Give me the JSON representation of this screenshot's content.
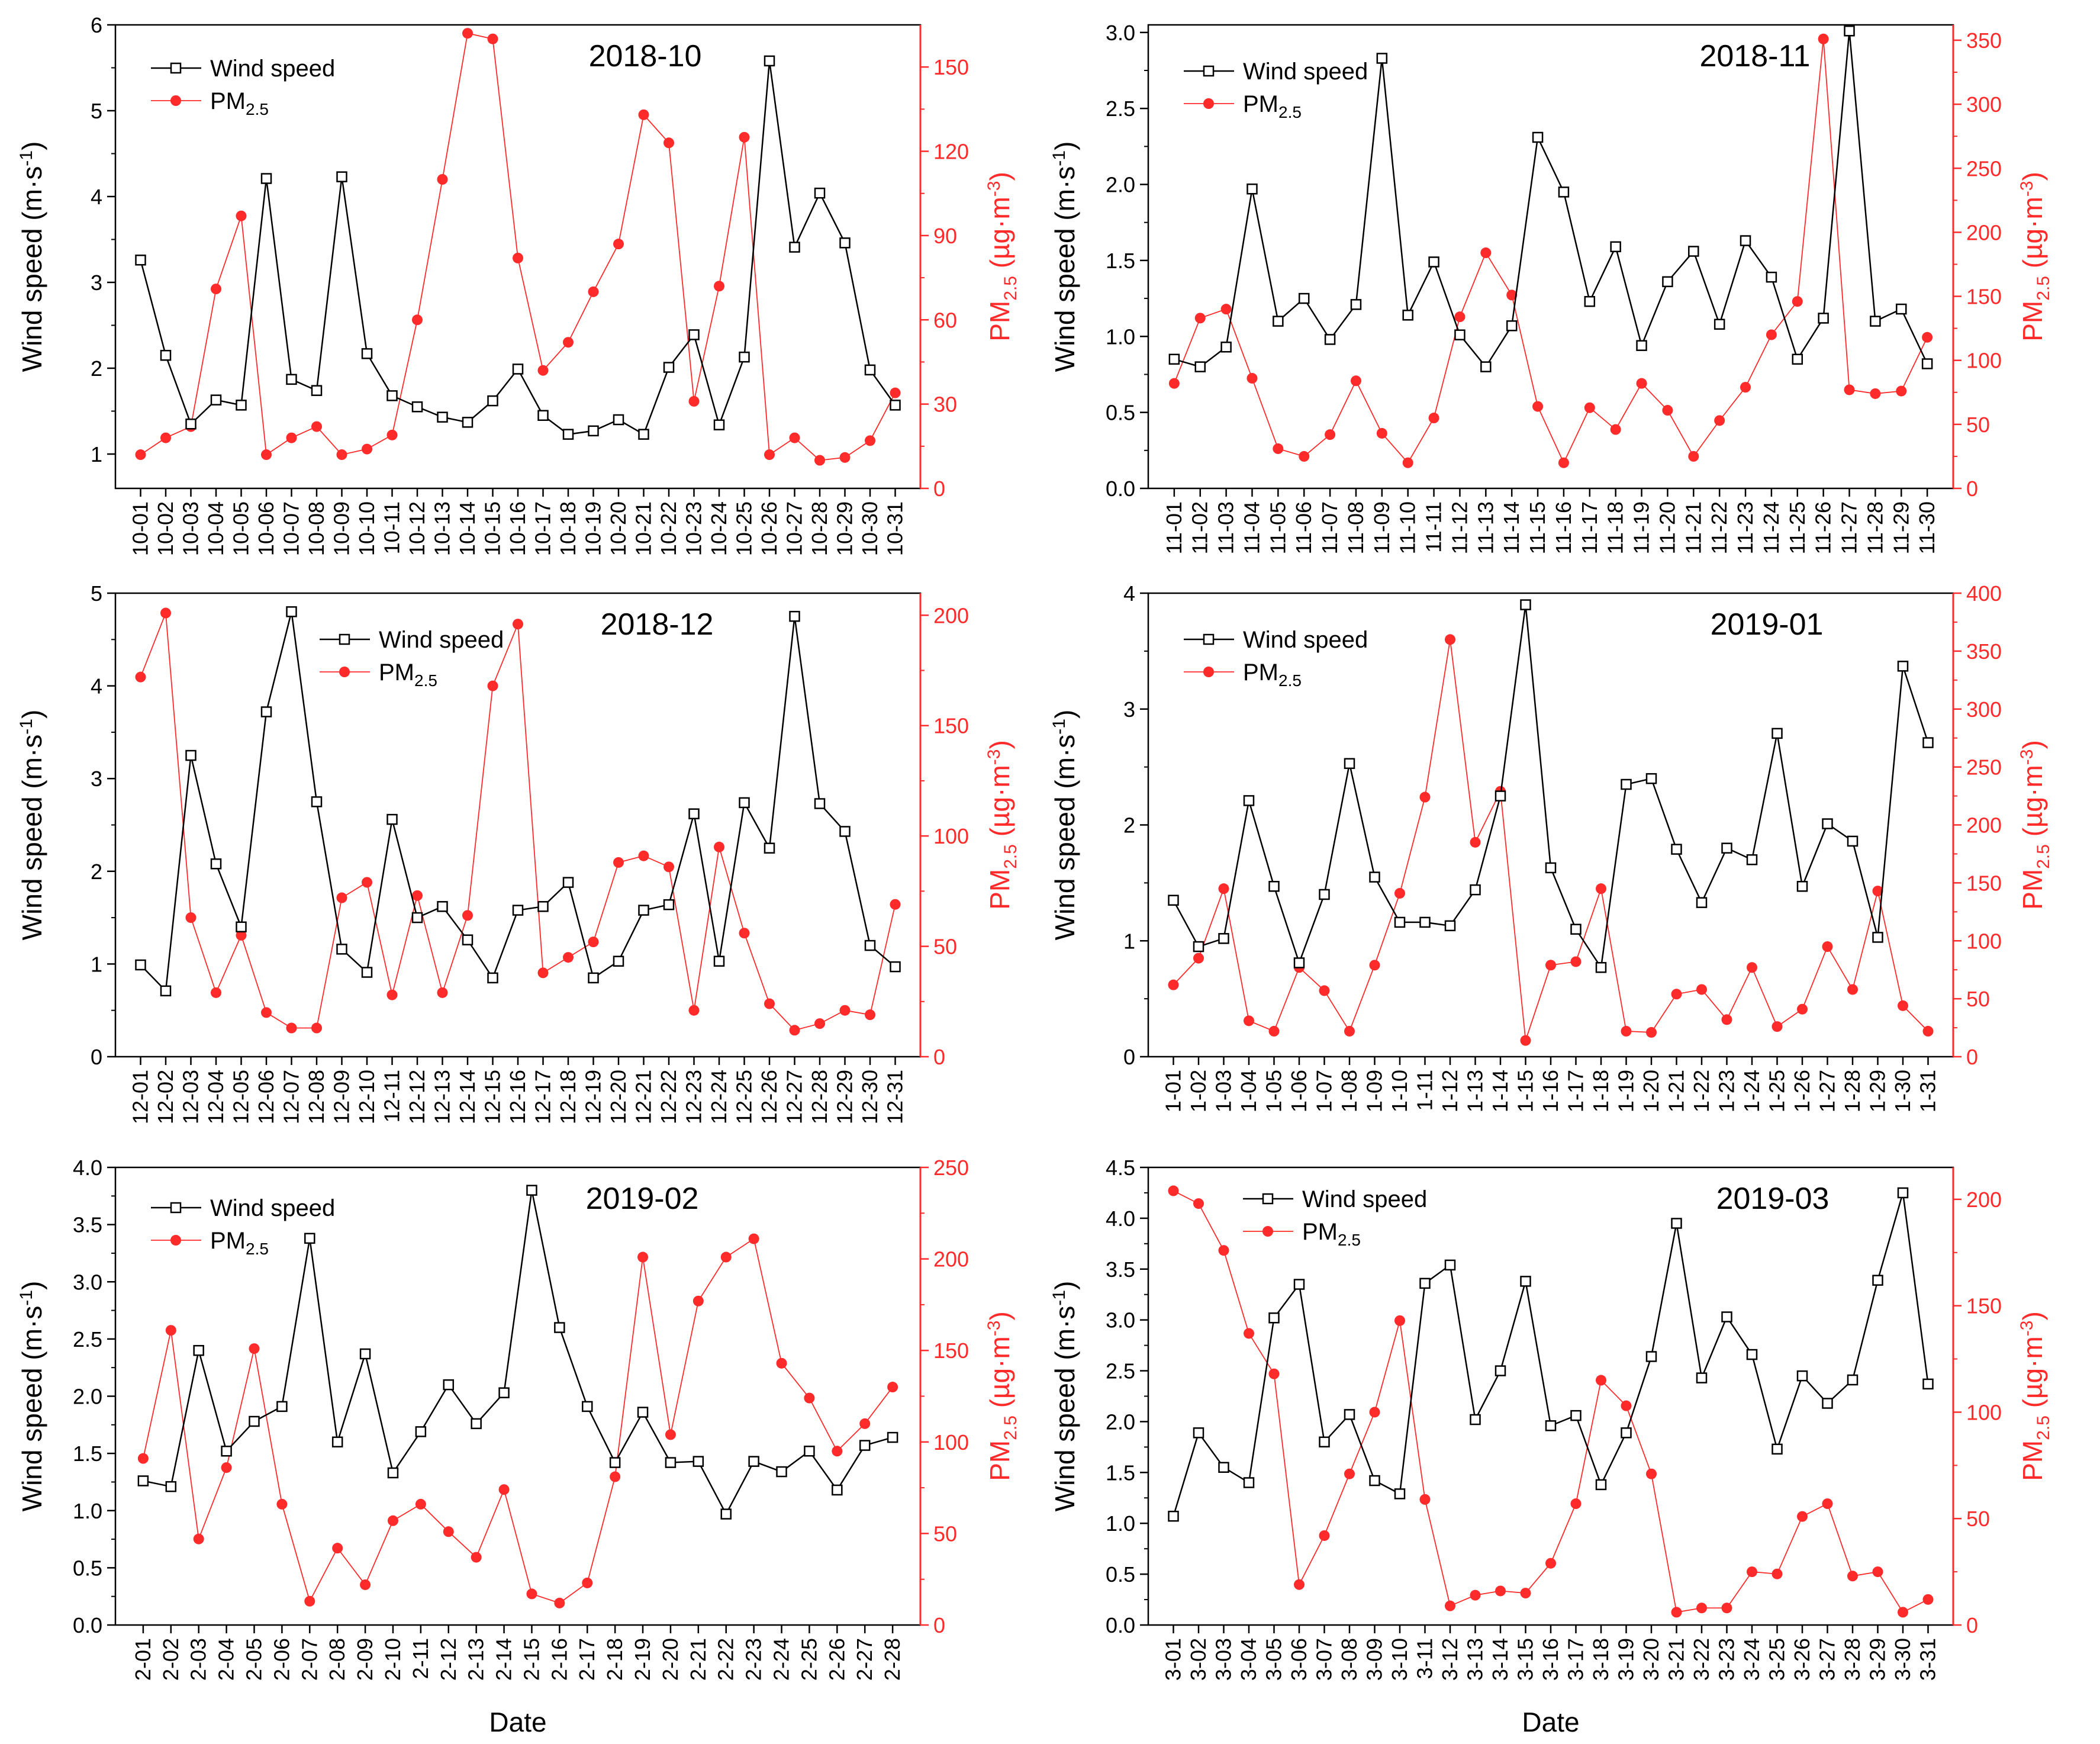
{
  "figure": {
    "colors": {
      "wind": "#000000",
      "pm": "#ff2a2a"
    },
    "xlabel": "Date"
  },
  "chart_data": [
    {
      "type": "line",
      "title": "2018-10",
      "categories": [
        "10-01",
        "10-02",
        "10-03",
        "10-04",
        "10-05",
        "10-06",
        "10-07",
        "10-08",
        "10-09",
        "10-10",
        "10-11",
        "10-12",
        "10-13",
        "10-14",
        "10-15",
        "10-16",
        "10-17",
        "10-18",
        "10-19",
        "10-20",
        "10-21",
        "10-22",
        "10-23",
        "10-24",
        "10-25",
        "10-26",
        "10-27",
        "10-28",
        "10-29",
        "10-30",
        "10-31"
      ],
      "ylabel_left": {
        "main": "Wind speed (m·s",
        "sup": "-1",
        "tail": ")"
      },
      "ylabel_right": {
        "main": "PM",
        "sub": "2.5",
        "unit": " (µg·m",
        "sup": "-3",
        "tail": ")"
      },
      "ylim_left": [
        0.6,
        6
      ],
      "yticks_left": [
        1,
        2,
        3,
        4,
        5,
        6
      ],
      "ylim_right": [
        0,
        165
      ],
      "yticks_right": [
        0,
        30,
        60,
        90,
        120,
        150
      ],
      "legend": {
        "wind": "Wind speed",
        "pm_main": "PM",
        "pm_sub": "2.5"
      },
      "series": [
        {
          "name": "Wind speed",
          "axis": "left",
          "marker": "square",
          "values": [
            3.26,
            2.15,
            1.35,
            1.63,
            1.57,
            4.21,
            1.87,
            1.74,
            4.23,
            2.17,
            1.68,
            1.55,
            1.43,
            1.37,
            1.62,
            1.99,
            1.45,
            1.23,
            1.27,
            1.4,
            1.23,
            2.01,
            2.39,
            1.34,
            2.13,
            5.58,
            3.41,
            4.04,
            3.46,
            1.98,
            1.57
          ]
        },
        {
          "name": "PM2.5",
          "axis": "right",
          "marker": "circle",
          "values": [
            12,
            18,
            22,
            71,
            97,
            12,
            18,
            22,
            12,
            14,
            19,
            60,
            110,
            162,
            160,
            82,
            42,
            52,
            70,
            87,
            133,
            123,
            31,
            72,
            125,
            12,
            18,
            10,
            11,
            17,
            34
          ]
        }
      ]
    },
    {
      "type": "line",
      "title": "2018-11",
      "categories": [
        "11-01",
        "11-02",
        "11-03",
        "11-04",
        "11-05",
        "11-06",
        "11-07",
        "11-08",
        "11-09",
        "11-10",
        "11-11",
        "11-12",
        "11-13",
        "11-14",
        "11-15",
        "11-16",
        "11-17",
        "11-18",
        "11-19",
        "11-20",
        "11-21",
        "11-22",
        "11-23",
        "11-24",
        "11-25",
        "11-26",
        "11-27",
        "11-28",
        "11-29",
        "11-30"
      ],
      "ylabel_left": {
        "main": "Wind speed (m·s",
        "sup": "-1",
        "tail": ")"
      },
      "ylabel_right": {
        "main": "PM",
        "sub": "2.5",
        "unit": " (µg·m",
        "sup": "-3",
        "tail": ")"
      },
      "ylim_left": [
        0,
        3.05
      ],
      "yticks_left": [
        0.0,
        0.5,
        1.0,
        1.5,
        2.0,
        2.5,
        3.0
      ],
      "ylim_right": [
        0,
        362
      ],
      "yticks_right": [
        0,
        50,
        100,
        150,
        200,
        250,
        300,
        350
      ],
      "legend": {
        "wind": "Wind speed",
        "pm_main": "PM",
        "pm_sub": "2.5"
      },
      "series": [
        {
          "name": "Wind speed",
          "axis": "left",
          "marker": "square",
          "values": [
            0.85,
            0.8,
            0.93,
            1.97,
            1.1,
            1.25,
            0.98,
            1.21,
            2.83,
            1.14,
            1.49,
            1.01,
            0.8,
            1.07,
            2.31,
            1.95,
            1.23,
            1.59,
            0.94,
            1.36,
            1.56,
            1.08,
            1.63,
            1.39,
            0.85,
            1.12,
            3.01,
            1.1,
            1.18,
            0.82
          ]
        },
        {
          "name": "PM2.5",
          "axis": "right",
          "marker": "circle",
          "values": [
            82,
            133,
            140,
            86,
            31,
            25,
            42,
            84,
            43,
            20,
            55,
            134,
            184,
            151,
            64,
            20,
            63,
            46,
            82,
            61,
            25,
            53,
            79,
            120,
            146,
            351,
            77,
            74,
            76,
            118
          ]
        }
      ]
    },
    {
      "type": "line",
      "title": "2018-12",
      "categories": [
        "12-01",
        "12-02",
        "12-03",
        "12-04",
        "12-05",
        "12-06",
        "12-07",
        "12-08",
        "12-09",
        "12-10",
        "12-11",
        "12-12",
        "12-13",
        "12-14",
        "12-15",
        "12-16",
        "12-17",
        "12-18",
        "12-19",
        "12-20",
        "12-21",
        "12-22",
        "12-23",
        "12-24",
        "12-25",
        "12-26",
        "12-27",
        "12-28",
        "12-29",
        "12-30",
        "12-31"
      ],
      "ylabel_left": {
        "main": "Wind speed (m·s",
        "sup": "-1",
        "tail": ")"
      },
      "ylabel_right": {
        "main": "PM",
        "sub": "2.5",
        "unit": " (µg·m",
        "sup": "-3",
        "tail": ")"
      },
      "ylim_left": [
        0,
        5
      ],
      "yticks_left": [
        0,
        1,
        2,
        3,
        4,
        5
      ],
      "ylim_right": [
        0,
        210
      ],
      "yticks_right": [
        0,
        50,
        100,
        150,
        200
      ],
      "legend": {
        "wind": "Wind speed",
        "pm_main": "PM",
        "pm_sub": "2.5"
      },
      "series": [
        {
          "name": "Wind speed",
          "axis": "left",
          "marker": "square",
          "values": [
            0.99,
            0.71,
            3.25,
            2.08,
            1.4,
            3.72,
            4.8,
            2.75,
            1.16,
            0.91,
            2.56,
            1.5,
            1.62,
            1.26,
            0.85,
            1.58,
            1.62,
            1.88,
            0.85,
            1.03,
            1.58,
            1.64,
            2.62,
            1.03,
            2.74,
            2.25,
            4.75,
            2.73,
            2.43,
            1.2,
            0.97
          ]
        },
        {
          "name": "PM2.5",
          "axis": "right",
          "marker": "circle",
          "values": [
            172,
            201,
            63,
            29,
            55,
            20,
            13,
            13,
            72,
            79,
            28,
            73,
            29,
            64,
            168,
            196,
            38,
            45,
            52,
            88,
            91,
            86,
            21,
            95,
            56,
            24,
            12,
            15,
            21,
            19,
            69
          ]
        }
      ]
    },
    {
      "type": "line",
      "title": "2019-01",
      "categories": [
        "1-01",
        "1-02",
        "1-03",
        "1-04",
        "1-05",
        "1-06",
        "1-07",
        "1-08",
        "1-09",
        "1-10",
        "1-11",
        "1-12",
        "1-13",
        "1-14",
        "1-15",
        "1-16",
        "1-17",
        "1-18",
        "1-19",
        "1-20",
        "1-21",
        "1-22",
        "1-23",
        "1-24",
        "1-25",
        "1-26",
        "1-27",
        "1-28",
        "1-29",
        "1-30",
        "1-31"
      ],
      "ylabel_left": {
        "main": "Wind speed (m·s",
        "sup": "-1",
        "tail": ")"
      },
      "ylabel_right": {
        "main": "PM",
        "sub": "2.5",
        "unit": " (µg·m",
        "sup": "-3",
        "tail": ")"
      },
      "ylim_left": [
        0,
        4
      ],
      "yticks_left": [
        0,
        1,
        2,
        3,
        4
      ],
      "ylim_right": [
        0,
        400
      ],
      "yticks_right": [
        0,
        50,
        100,
        150,
        200,
        250,
        300,
        350,
        400
      ],
      "legend": {
        "wind": "Wind speed",
        "pm_main": "PM",
        "pm_sub": "2.5"
      },
      "series": [
        {
          "name": "Wind speed",
          "axis": "left",
          "marker": "square",
          "values": [
            1.35,
            0.95,
            1.02,
            2.21,
            1.47,
            0.81,
            1.4,
            2.53,
            1.55,
            1.16,
            1.16,
            1.13,
            1.44,
            2.25,
            3.9,
            1.63,
            1.1,
            0.77,
            2.35,
            2.4,
            1.79,
            1.33,
            1.8,
            1.7,
            2.79,
            1.47,
            2.01,
            1.86,
            1.03,
            3.37,
            2.71
          ]
        },
        {
          "name": "PM2.5",
          "axis": "right",
          "marker": "circle",
          "values": [
            62,
            85,
            145,
            31,
            22,
            77,
            57,
            22,
            79,
            141,
            224,
            360,
            185,
            229,
            14,
            79,
            82,
            145,
            22,
            21,
            54,
            58,
            32,
            77,
            26,
            41,
            95,
            58,
            143,
            44,
            22
          ]
        }
      ]
    },
    {
      "type": "line",
      "title": "2019-02",
      "categories": [
        "2-01",
        "2-02",
        "2-03",
        "2-04",
        "2-05",
        "2-06",
        "2-07",
        "2-08",
        "2-09",
        "2-10",
        "2-11",
        "2-12",
        "2-13",
        "2-14",
        "2-15",
        "2-16",
        "2-17",
        "2-18",
        "2-19",
        "2-20",
        "2-21",
        "2-22",
        "2-23",
        "2-24",
        "2-25",
        "2-26",
        "2-27",
        "2-28"
      ],
      "ylabel_left": {
        "main": "Wind speed (m·s",
        "sup": "-1",
        "tail": ")"
      },
      "ylabel_right": {
        "main": "PM",
        "sub": "2.5",
        "unit": " (µg·m",
        "sup": "-3",
        "tail": ")"
      },
      "ylim_left": [
        0,
        4.0
      ],
      "yticks_left": [
        0.0,
        0.5,
        1.0,
        1.5,
        2.0,
        2.5,
        3.0,
        3.5,
        4.0
      ],
      "ylim_right": [
        0,
        250
      ],
      "yticks_right": [
        0,
        50,
        100,
        150,
        200,
        250
      ],
      "legend": {
        "wind": "Wind speed",
        "pm_main": "PM",
        "pm_sub": "2.5"
      },
      "series": [
        {
          "name": "Wind speed",
          "axis": "left",
          "marker": "square",
          "values": [
            1.26,
            1.21,
            2.4,
            1.52,
            1.78,
            1.91,
            3.38,
            1.6,
            2.37,
            1.33,
            1.69,
            2.1,
            1.76,
            2.03,
            3.8,
            2.6,
            1.91,
            1.42,
            1.86,
            1.42,
            1.43,
            0.97,
            1.43,
            1.34,
            1.52,
            1.18,
            1.57,
            1.64
          ]
        },
        {
          "name": "PM2.5",
          "axis": "right",
          "marker": "circle",
          "values": [
            91,
            161,
            47,
            86,
            151,
            66,
            13,
            42,
            22,
            57,
            66,
            51,
            37,
            74,
            17,
            12,
            23,
            81,
            201,
            104,
            177,
            201,
            211,
            143,
            124,
            95,
            110,
            130
          ]
        }
      ]
    },
    {
      "type": "line",
      "title": "2019-03",
      "categories": [
        "3-01",
        "3-02",
        "3-03",
        "3-04",
        "3-05",
        "3-06",
        "3-07",
        "3-08",
        "3-09",
        "3-10",
        "3-11",
        "3-12",
        "3-13",
        "3-14",
        "3-15",
        "3-16",
        "3-17",
        "3-18",
        "3-19",
        "3-20",
        "3-21",
        "3-22",
        "3-23",
        "3-24",
        "3-25",
        "3-26",
        "3-27",
        "3-28",
        "3-29",
        "3-30",
        "3-31"
      ],
      "ylabel_left": {
        "main": "Wind speed (m·s",
        "sup": "-1",
        "tail": ")"
      },
      "ylabel_right": {
        "main": "PM",
        "sub": "2.5",
        "unit": " (µg·m",
        "sup": "-3",
        "tail": ")"
      },
      "ylim_left": [
        0,
        4.5
      ],
      "yticks_left": [
        0.0,
        0.5,
        1.0,
        1.5,
        2.0,
        2.5,
        3.0,
        3.5,
        4.0,
        4.5
      ],
      "ylim_right": [
        0,
        215
      ],
      "yticks_right": [
        0,
        50,
        100,
        150,
        200
      ],
      "legend": {
        "wind": "Wind speed",
        "pm_main": "PM",
        "pm_sub": "2.5"
      },
      "series": [
        {
          "name": "Wind speed",
          "axis": "left",
          "marker": "square",
          "values": [
            1.07,
            1.89,
            1.55,
            1.4,
            3.02,
            3.35,
            1.8,
            2.07,
            1.42,
            1.29,
            3.36,
            3.54,
            2.02,
            2.5,
            3.38,
            1.96,
            2.06,
            1.38,
            1.89,
            2.64,
            3.95,
            2.43,
            3.03,
            2.66,
            1.73,
            2.45,
            2.18,
            2.41,
            3.39,
            4.25,
            2.37
          ]
        },
        {
          "name": "PM2.5",
          "axis": "right",
          "marker": "circle",
          "values": [
            204,
            198,
            176,
            137,
            118,
            19,
            42,
            71,
            100,
            143,
            59,
            9,
            14,
            16,
            15,
            29,
            57,
            115,
            103,
            71,
            6,
            8,
            8,
            25,
            24,
            51,
            57,
            23,
            25,
            6,
            12
          ]
        }
      ]
    }
  ]
}
